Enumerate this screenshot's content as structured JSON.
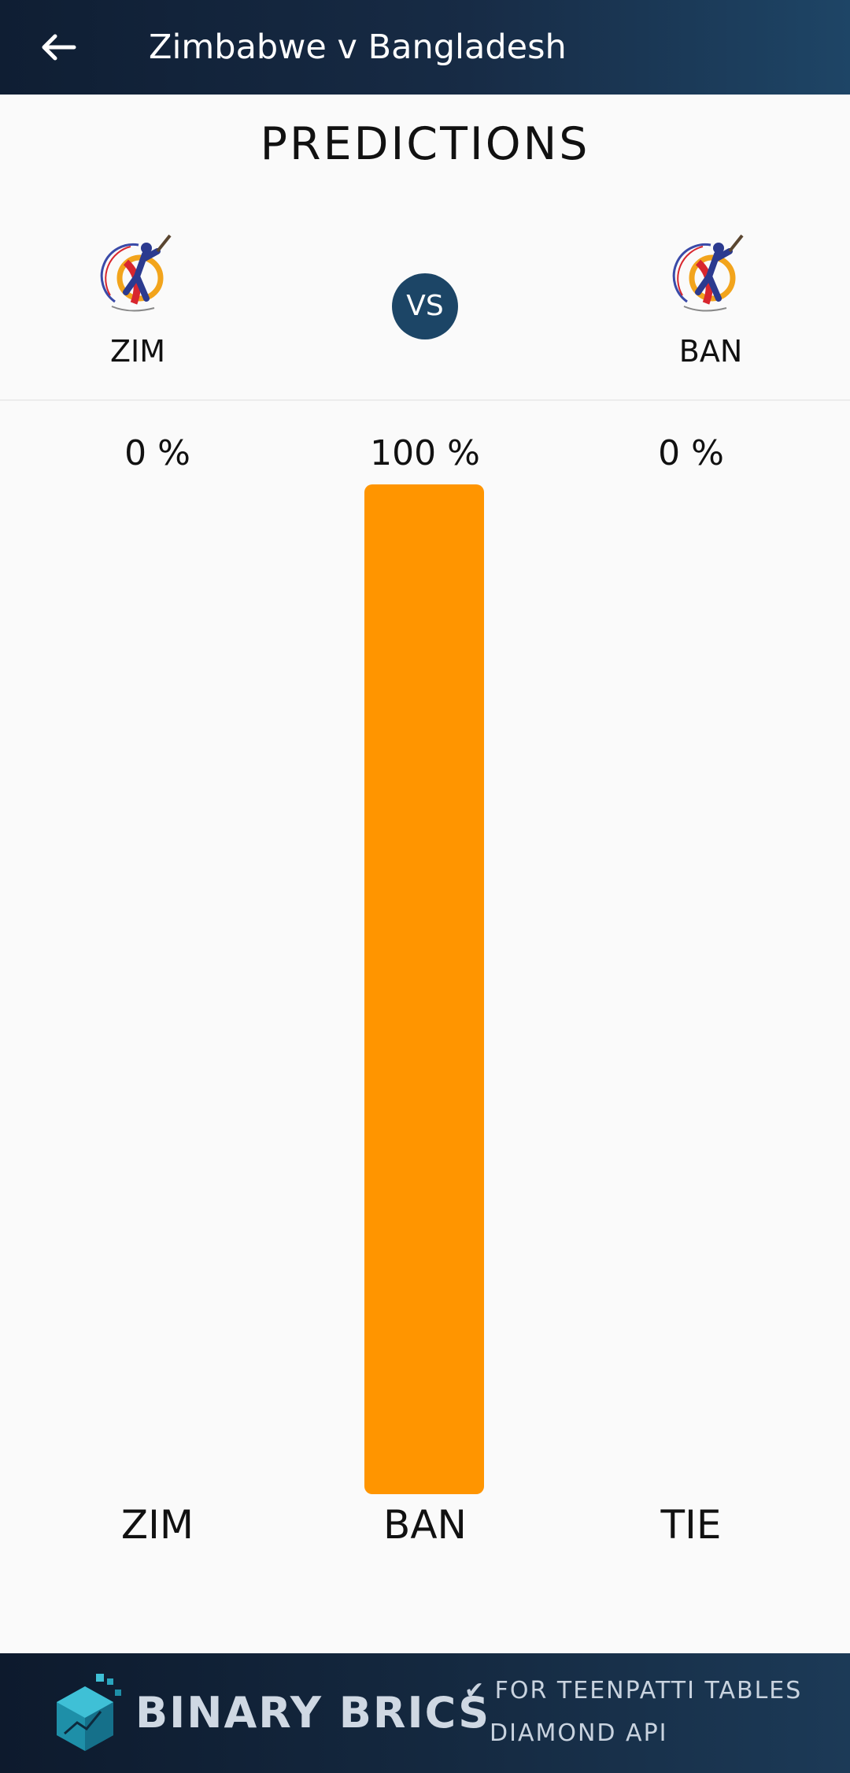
{
  "appbar": {
    "title": "Zimbabwe v Bangladesh",
    "back_icon": "arrow-left-icon"
  },
  "heading": "PREDICTIONS",
  "match": {
    "team1": {
      "abbr": "ZIM",
      "logo_icon": "cricket-batsman-logo"
    },
    "team2": {
      "abbr": "BAN",
      "logo_icon": "cricket-batsman-logo"
    },
    "vs_label": "VS"
  },
  "predictions": [
    {
      "label": "ZIM",
      "percent_label": "0 %",
      "value": 0
    },
    {
      "label": "BAN",
      "percent_label": "100 %",
      "value": 100
    },
    {
      "label": "TIE",
      "percent_label": "0 %",
      "value": 0
    }
  ],
  "colors": {
    "bar": "#ff9500",
    "appbar": "#172b45",
    "vs_badge": "#1c4566"
  },
  "banner": {
    "brand": "BINARY BRICS",
    "line1": "✔ FOR TEENPATTI TABLES",
    "line2": "DIAMOND API",
    "logo_icon": "hexagon-cube-logo"
  }
}
